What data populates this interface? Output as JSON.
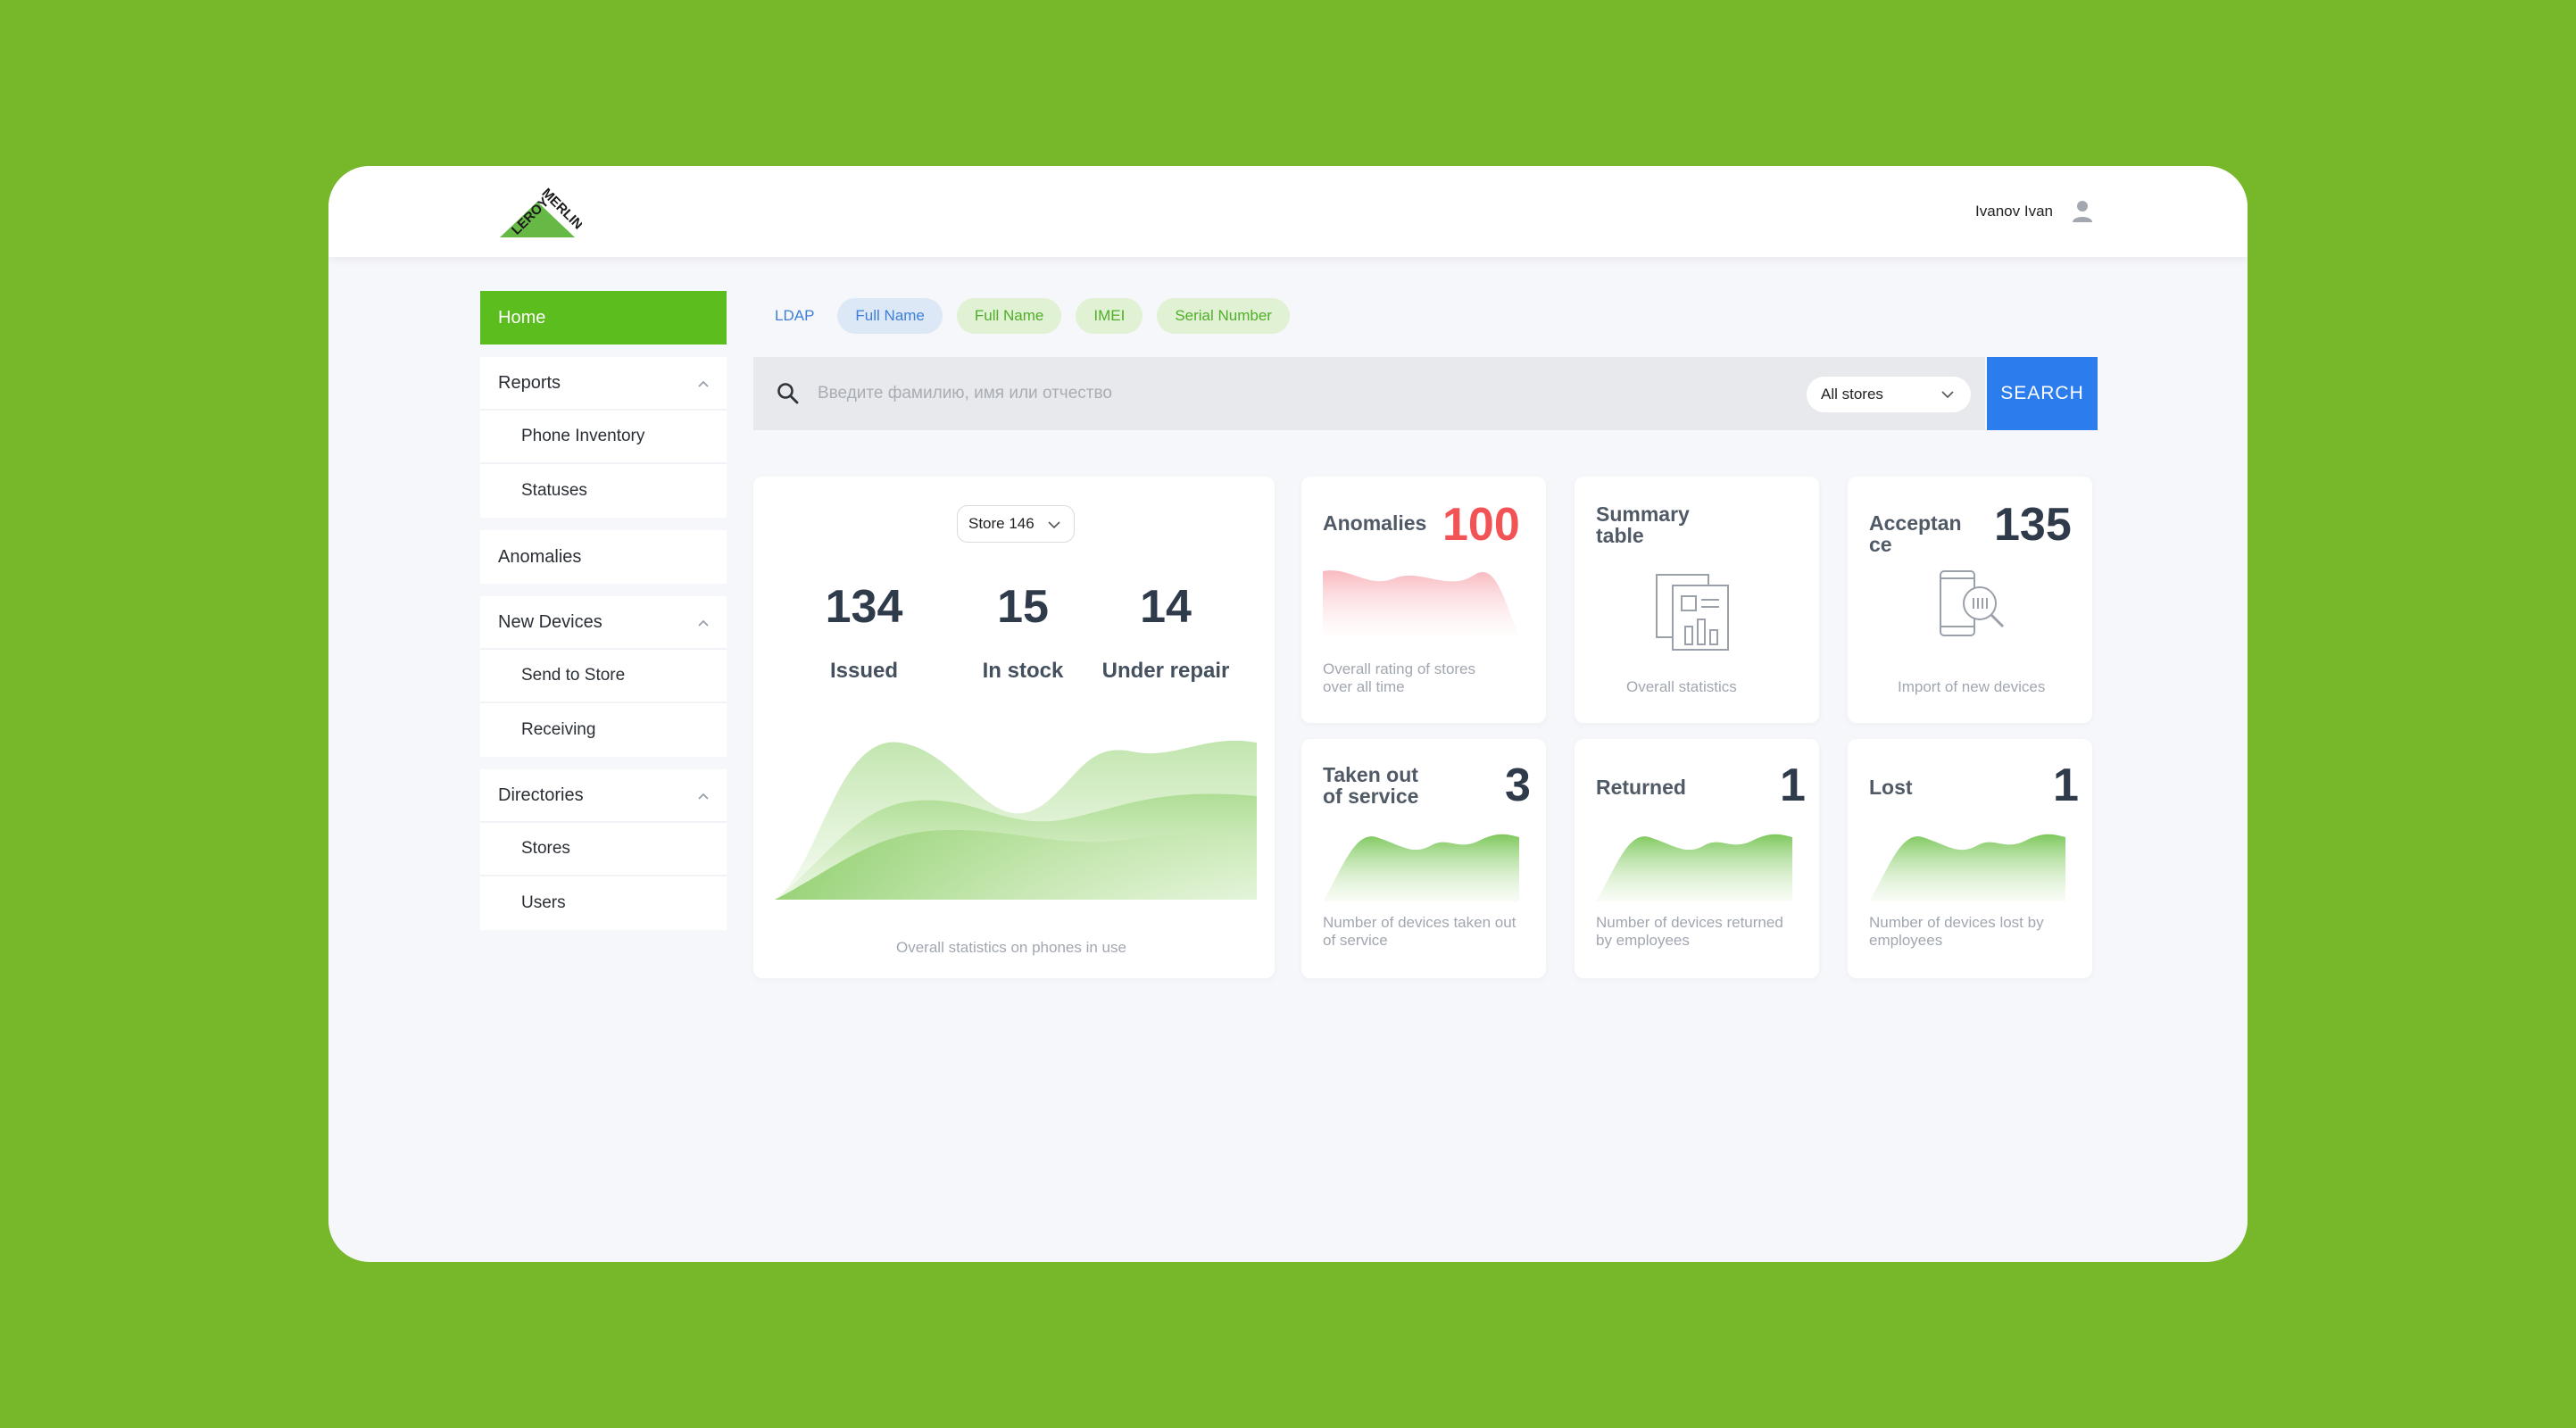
{
  "header": {
    "logo_text": "LEROY MERLIN",
    "user_name": "Ivanov Ivan"
  },
  "sidebar": {
    "home": "Home",
    "groups": [
      {
        "label": "Reports",
        "items": [
          "Phone Inventory",
          "Statuses"
        ]
      },
      {
        "label": "Anomalies",
        "items": []
      },
      {
        "label": "New Devices",
        "items": [
          "Send to Store",
          "Receiving"
        ]
      },
      {
        "label": "Directories",
        "items": [
          "Stores",
          "Users"
        ]
      }
    ]
  },
  "filters": {
    "chips": [
      "LDAP",
      "Full Name",
      "Full Name",
      "IMEI",
      "Serial Number"
    ]
  },
  "search": {
    "placeholder": "Введите фамилию, имя или отчество",
    "store_select": "All stores",
    "button": "SEARCH"
  },
  "overview": {
    "store": "Store 146",
    "stats": [
      {
        "value": "134",
        "label": "Issued"
      },
      {
        "value": "15",
        "label": "In stock"
      },
      {
        "value": "14",
        "label": "Under repair"
      }
    ],
    "caption": "Overall statistics on phones in use"
  },
  "cards": {
    "anomalies": {
      "title": "Anomalies",
      "value": "100",
      "caption": "Overall rating of stores over all time"
    },
    "summary": {
      "title": "Summary table",
      "caption": "Overall statistics"
    },
    "acceptance": {
      "title": "Acceptance",
      "value": "135",
      "caption": "Import of new devices"
    },
    "taken_out": {
      "title": "Taken out of service",
      "value": "3",
      "caption": "Number of devices taken out of service"
    },
    "returned": {
      "title": "Returned",
      "value": "1",
      "caption": "Number of devices returned by employees"
    },
    "lost": {
      "title": "Lost",
      "value": "1",
      "caption": "Number of devices lost by employees"
    }
  },
  "colors": {
    "brand_green": "#5cbd1e",
    "background_green": "#77b82a",
    "search_blue": "#2b7ded",
    "anomaly_red": "#f25456"
  }
}
